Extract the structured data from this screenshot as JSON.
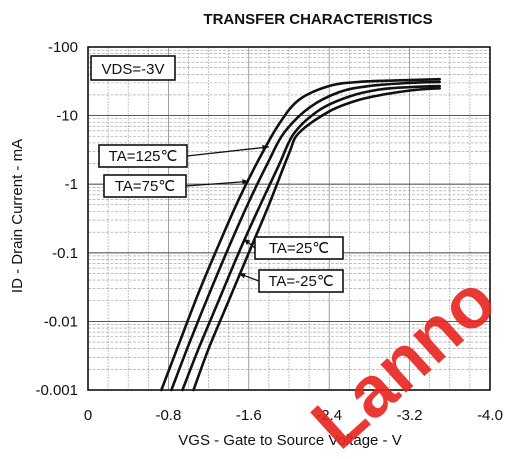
{
  "chart_data": {
    "type": "line",
    "title": "TRANSFER CHARACTERISTICS",
    "xlabel": "VGS - Gate to Source Voltage - V",
    "ylabel": "ID - Drain Current - mA",
    "xlim": [
      0,
      -4.0
    ],
    "ylim": [
      -0.001,
      -100
    ],
    "yscale": "log",
    "grid": true,
    "x_ticks": [
      "0",
      "-0.8",
      "-1.6",
      "-2.4",
      "-3.2",
      "-4.0"
    ],
    "y_ticks": [
      "-100",
      "-10",
      "-1",
      "-0.1",
      "-0.01",
      "-0.001"
    ],
    "condition_label": "VDS=-3V",
    "series": [
      {
        "name": "TA=125℃",
        "x": [
          -0.73,
          -0.9,
          -1.1,
          -1.3,
          -1.5,
          -1.7,
          -1.9,
          -2.1,
          -2.4,
          -2.7,
          -3.2,
          -3.5
        ],
        "y": [
          -0.001,
          -0.0045,
          -0.026,
          -0.13,
          -0.6,
          -2.3,
          -7.5,
          -17,
          -27,
          -31,
          -33,
          -34
        ]
      },
      {
        "name": "TA=75℃",
        "x": [
          -0.83,
          -1.0,
          -1.2,
          -1.4,
          -1.6,
          -1.8,
          -1.95,
          -2.2,
          -2.5,
          -2.8,
          -3.2,
          -3.5
        ],
        "y": [
          -0.001,
          -0.0045,
          -0.024,
          -0.12,
          -0.55,
          -2.2,
          -5.6,
          -13,
          -22,
          -27,
          -30,
          -31
        ]
      },
      {
        "name": "TA=25℃",
        "x": [
          -0.94,
          -1.1,
          -1.3,
          -1.5,
          -1.7,
          -1.9,
          -2.05,
          -2.3,
          -2.6,
          -2.9,
          -3.2,
          -3.5
        ],
        "y": [
          -0.001,
          -0.004,
          -0.02,
          -0.1,
          -0.45,
          -1.9,
          -5.5,
          -12,
          -19,
          -24,
          -26,
          -27
        ]
      },
      {
        "name": "TA=-25℃",
        "x": [
          -1.05,
          -1.2,
          -1.4,
          -1.6,
          -1.8,
          -2.0,
          -2.1,
          -2.4,
          -2.7,
          -3.0,
          -3.3,
          -3.5
        ],
        "y": [
          -0.001,
          -0.004,
          -0.02,
          -0.1,
          -0.5,
          -2.8,
          -5.6,
          -11.5,
          -17,
          -21,
          -24,
          -25
        ]
      }
    ],
    "annotations": [
      {
        "text": "TA=125℃",
        "series": "TA=125℃",
        "at": [
          -1.8,
          -3.5
        ]
      },
      {
        "text": "TA=75℃",
        "series": "TA=75℃",
        "at": [
          -1.6,
          -1.1
        ]
      },
      {
        "text": "TA=25℃",
        "series": "TA=25℃",
        "at": [
          -1.55,
          -0.16
        ]
      },
      {
        "text": "TA=-25℃",
        "series": "TA=-25℃",
        "at": [
          -1.5,
          -0.05
        ]
      }
    ],
    "watermark_text": "Lanno"
  }
}
